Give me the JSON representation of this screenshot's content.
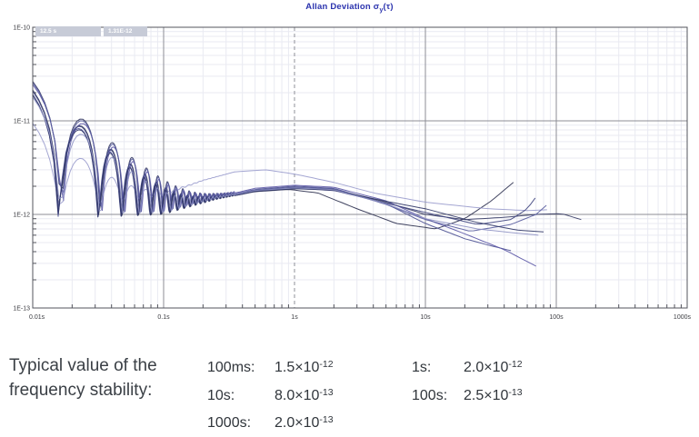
{
  "title": {
    "prefix": "Allan Deviation σ",
    "sub": "y",
    "suffix": "(τ)",
    "color": "#2b33ae"
  },
  "chart_data": {
    "type": "line",
    "title": "Allan Deviation σy(τ)",
    "x_axis": {
      "scale": "log",
      "range": [
        0.01,
        1000
      ],
      "ticks": [
        {
          "value": 0.01,
          "label": "0.01s"
        },
        {
          "value": 0.1,
          "label": "0.1s"
        },
        {
          "value": 1,
          "label": "1s"
        },
        {
          "value": 10,
          "label": "10s"
        },
        {
          "value": 100,
          "label": "100s"
        },
        {
          "value": 1000,
          "label": "1000s"
        }
      ]
    },
    "y_axis": {
      "scale": "log",
      "range": [
        1e-13,
        1e-10
      ],
      "ticks": [
        {
          "value": 1e-10,
          "label": "1E-10"
        },
        {
          "value": 1e-11,
          "label": "1E-11"
        },
        {
          "value": 1e-12,
          "label": "1E-12"
        },
        {
          "value": 1e-13,
          "label": "1E-13"
        }
      ]
    },
    "cursor": {
      "tau_label": "12.5 s",
      "value_label": "1.31E-12",
      "marker_tau": 1
    },
    "grid": {
      "minor_color": "#e9eaf2",
      "major_color": "#8c8d95",
      "border_color": "#53545c",
      "dashed_marker_color": "#8f9098",
      "label_color": "#3c3d42"
    },
    "osc_region_end": 0.35,
    "osc_decay": 1.12,
    "series": [
      {
        "name": "dark-rise",
        "color": "#2e3150",
        "osc_start": 2.3e-11,
        "osc_period": 0.0161,
        "tau": [
          0.01,
          0.1,
          0.25,
          0.5,
          0.9,
          1.5,
          3,
          6,
          12,
          20,
          32,
          47
        ],
        "sigma": [
          8e-13,
          1e-12,
          1.45e-12,
          1.75e-12,
          1.85e-12,
          1.7e-12,
          1.15e-12,
          8e-13,
          7e-13,
          9e-13,
          1.4e-12,
          2.2e-12
        ]
      },
      {
        "name": "dark-long",
        "color": "#343863",
        "osc_start": 2.8e-11,
        "osc_period": 0.0165,
        "tau": [
          0.01,
          0.1,
          0.25,
          0.5,
          1,
          2,
          5,
          10,
          20,
          40,
          70,
          110,
          155
        ],
        "sigma": [
          8.5e-13,
          1.05e-12,
          1.5e-12,
          1.8e-12,
          1.95e-12,
          1.85e-12,
          1.35e-12,
          1e-12,
          8.8e-13,
          9.3e-13,
          1e-12,
          1.02e-12,
          8.8e-13
        ]
      },
      {
        "name": "blue-mid",
        "color": "#4a4f91",
        "osc_start": 2.1e-11,
        "osc_period": 0.0158,
        "tau": [
          0.01,
          0.1,
          0.25,
          0.5,
          1,
          2,
          5,
          10,
          20,
          32,
          45
        ],
        "sigma": [
          8.3e-13,
          1.02e-12,
          1.48e-12,
          1.85e-12,
          2e-12,
          1.9e-12,
          1.3e-12,
          8e-13,
          5.5e-13,
          4.6e-13,
          4.1e-13
        ]
      },
      {
        "name": "violet-low",
        "color": "#5a55a5",
        "osc_start": 2.55e-11,
        "osc_period": 0.0168,
        "tau": [
          0.01,
          0.1,
          0.25,
          0.5,
          1,
          2,
          5,
          10,
          20,
          40,
          70
        ],
        "sigma": [
          9e-13,
          1.08e-12,
          1.52e-12,
          1.9e-12,
          2.05e-12,
          1.95e-12,
          1.4e-12,
          9e-13,
          6.2e-13,
          4.2e-13,
          2.8e-13
        ]
      },
      {
        "name": "light-top",
        "color": "#9a9ccd",
        "osc_start": 1e-11,
        "osc_period": 0.0163,
        "tau": [
          0.01,
          0.1,
          0.2,
          0.35,
          0.6,
          1,
          2,
          4,
          10,
          30,
          60,
          85
        ],
        "sigma": [
          1.05e-12,
          1.6e-12,
          2.3e-12,
          2.85e-12,
          3e-12,
          2.7e-12,
          2.2e-12,
          1.7e-12,
          1.35e-12,
          1.15e-12,
          1.1e-12,
          1.12e-12
        ]
      },
      {
        "name": "blue-end-rise",
        "color": "#3f4580",
        "osc_start": 2.25e-11,
        "osc_period": 0.016,
        "tau": [
          0.01,
          0.1,
          0.25,
          0.5,
          1,
          2,
          5,
          10,
          25,
          45,
          60,
          69
        ],
        "sigma": [
          8.2e-13,
          1.03e-12,
          1.46e-12,
          1.78e-12,
          1.9e-12,
          1.8e-12,
          1.32e-12,
          1.05e-12,
          7.8e-13,
          8.8e-13,
          1.15e-12,
          1.5e-12
        ]
      },
      {
        "name": "slate-end-rise",
        "color": "#565b9d",
        "osc_start": 2.7e-11,
        "osc_period": 0.0166,
        "tau": [
          0.01,
          0.1,
          0.25,
          0.5,
          1,
          2,
          5,
          10,
          22,
          45,
          70,
          84
        ],
        "sigma": [
          8.8e-13,
          1.06e-12,
          1.5e-12,
          1.82e-12,
          1.95e-12,
          1.88e-12,
          1.28e-12,
          8.8e-13,
          6.6e-13,
          7.8e-13,
          1e-12,
          1.25e-12
        ]
      },
      {
        "name": "navy-mid",
        "color": "#2f3566",
        "osc_start": 2.05e-11,
        "osc_period": 0.0159,
        "tau": [
          0.01,
          0.1,
          0.25,
          0.5,
          1,
          2,
          5,
          10,
          25,
          50,
          80
        ],
        "sigma": [
          8.3e-13,
          1e-12,
          1.44e-12,
          1.76e-12,
          1.88e-12,
          1.82e-12,
          1.38e-12,
          1.15e-12,
          8.2e-13,
          6.8e-13,
          6.5e-13
        ]
      },
      {
        "name": "light-low",
        "color": "#8f92c4",
        "osc_start": 1.9e-11,
        "osc_period": 0.0164,
        "tau": [
          0.01,
          0.1,
          0.25,
          0.5,
          1,
          2,
          5,
          10,
          25,
          50,
          73
        ],
        "sigma": [
          8.6e-13,
          1.04e-12,
          1.47e-12,
          1.8e-12,
          1.92e-12,
          1.84e-12,
          1.3e-12,
          9e-13,
          7e-13,
          6.3e-13,
          6e-13
        ]
      }
    ],
    "typical_values": {
      "100ms": 1.5e-12,
      "1s": 2e-12,
      "10s": 8e-13,
      "100s": 2.5e-13,
      "1000s": 2e-13
    }
  },
  "stability": {
    "heading_line1": "Typical value of the",
    "heading_line2": "frequency stability:",
    "col1": [
      {
        "label": "100ms:",
        "mantissa": "1.5×10",
        "exp": "-12"
      },
      {
        "label": "10s:",
        "mantissa": "8.0×10",
        "exp": "-13"
      },
      {
        "label": "1000s:",
        "mantissa": "2.0×10",
        "exp": "-13"
      }
    ],
    "col2": [
      {
        "label": "1s:",
        "mantissa": "2.0×10",
        "exp": "-12"
      },
      {
        "label": "100s:",
        "mantissa": "2.5×10",
        "exp": "-13"
      }
    ]
  }
}
